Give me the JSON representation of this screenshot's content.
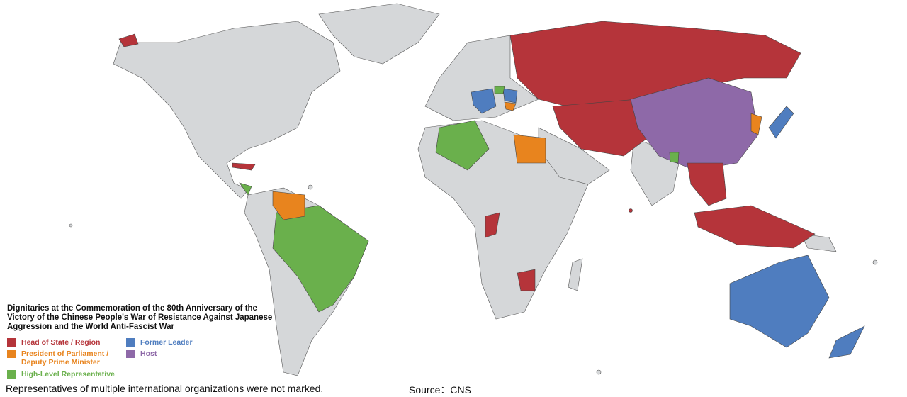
{
  "legend": {
    "title": "Dignitaries at the Commemoration of the 80th Anniversary of the Victory of the Chinese People's War of Resistance Against Japanese Aggression and the World Anti-Fascist War",
    "items": [
      {
        "label": "Head of State / Region",
        "color": "#b5343a"
      },
      {
        "label": "President of Parliament / Deputy Prime Minister",
        "color": "#e8841e"
      },
      {
        "label": "High-Level Representative",
        "color": "#6ab04c"
      },
      {
        "label": "Former Leader",
        "color": "#4f7dbf"
      },
      {
        "label": "Host",
        "color": "#8e69a8"
      }
    ]
  },
  "footnote": "Representatives of multiple international organizations were not marked.",
  "source": "Source：CNS"
}
